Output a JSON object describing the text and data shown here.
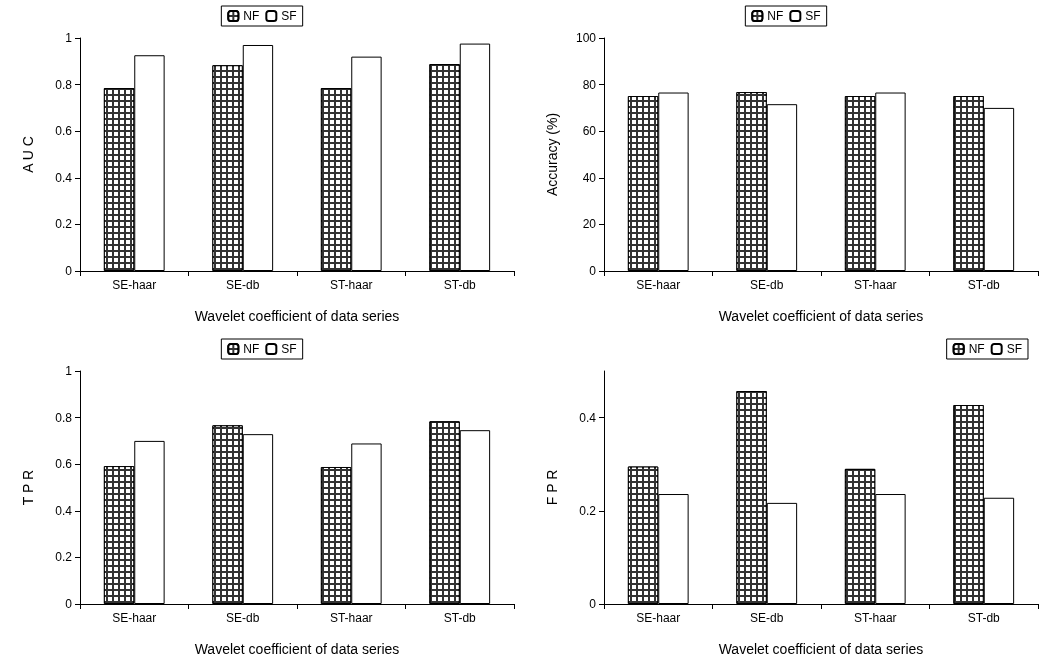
{
  "chart_data": [
    {
      "type": "bar",
      "xlabel": "Wavelet coefficient of data series",
      "ylabel": "A U C",
      "categories": [
        "SE-haar",
        "SE-db",
        "ST-haar",
        "ST-db"
      ],
      "series": [
        {
          "name": "NF",
          "color": "#333333",
          "values": [
            0.785,
            0.883,
            0.785,
            0.888
          ]
        },
        {
          "name": "SF",
          "color": "#ffffff",
          "values": [
            0.926,
            0.97,
            0.92,
            0.976
          ]
        }
      ],
      "ylim": [
        0,
        1
      ],
      "yticks": [
        0,
        0.2,
        0.4,
        0.6,
        0.8,
        1
      ],
      "grid": false,
      "legend": "top"
    },
    {
      "type": "bar",
      "xlabel": "Wavelet coefficient of data series",
      "ylabel": "Accuracy (%)",
      "categories": [
        "SE-haar",
        "SE-db",
        "ST-haar",
        "ST-db"
      ],
      "series": [
        {
          "name": "NF",
          "color": "#333333",
          "values": [
            75.1,
            76.8,
            75.1,
            75.1
          ]
        },
        {
          "name": "SF",
          "color": "#ffffff",
          "values": [
            76.6,
            71.6,
            76.6,
            70.0
          ]
        }
      ],
      "ylim": [
        0,
        100
      ],
      "yticks": [
        0,
        20,
        40,
        60,
        80,
        100
      ],
      "grid": false,
      "legend": "top"
    },
    {
      "type": "bar",
      "xlabel": "Wavelet coefficient of data series",
      "ylabel": "T P R",
      "categories": [
        "SE-haar",
        "SE-db",
        "ST-haar",
        "ST-db"
      ],
      "series": [
        {
          "name": "NF",
          "color": "#333333",
          "values": [
            0.592,
            0.767,
            0.588,
            0.784
          ]
        },
        {
          "name": "SF",
          "color": "#ffffff",
          "values": [
            0.7,
            0.729,
            0.689,
            0.746
          ]
        }
      ],
      "ylim": [
        0,
        1
      ],
      "yticks": [
        0,
        0.2,
        0.4,
        0.6,
        0.8,
        1
      ],
      "grid": false,
      "legend": "top"
    },
    {
      "type": "bar",
      "xlabel": "Wavelet coefficient of data series",
      "ylabel": "F P R",
      "categories": [
        "SE-haar",
        "SE-db",
        "ST-haar",
        "ST-db"
      ],
      "series": [
        {
          "name": "NF",
          "color": "#333333",
          "values": [
            0.295,
            0.457,
            0.29,
            0.427
          ]
        },
        {
          "name": "SF",
          "color": "#ffffff",
          "values": [
            0.236,
            0.217,
            0.236,
            0.228
          ]
        }
      ],
      "ylim": [
        0,
        0.5
      ],
      "yticks": [
        0,
        0.2,
        0.4
      ],
      "grid": false,
      "legend": "top right"
    }
  ]
}
